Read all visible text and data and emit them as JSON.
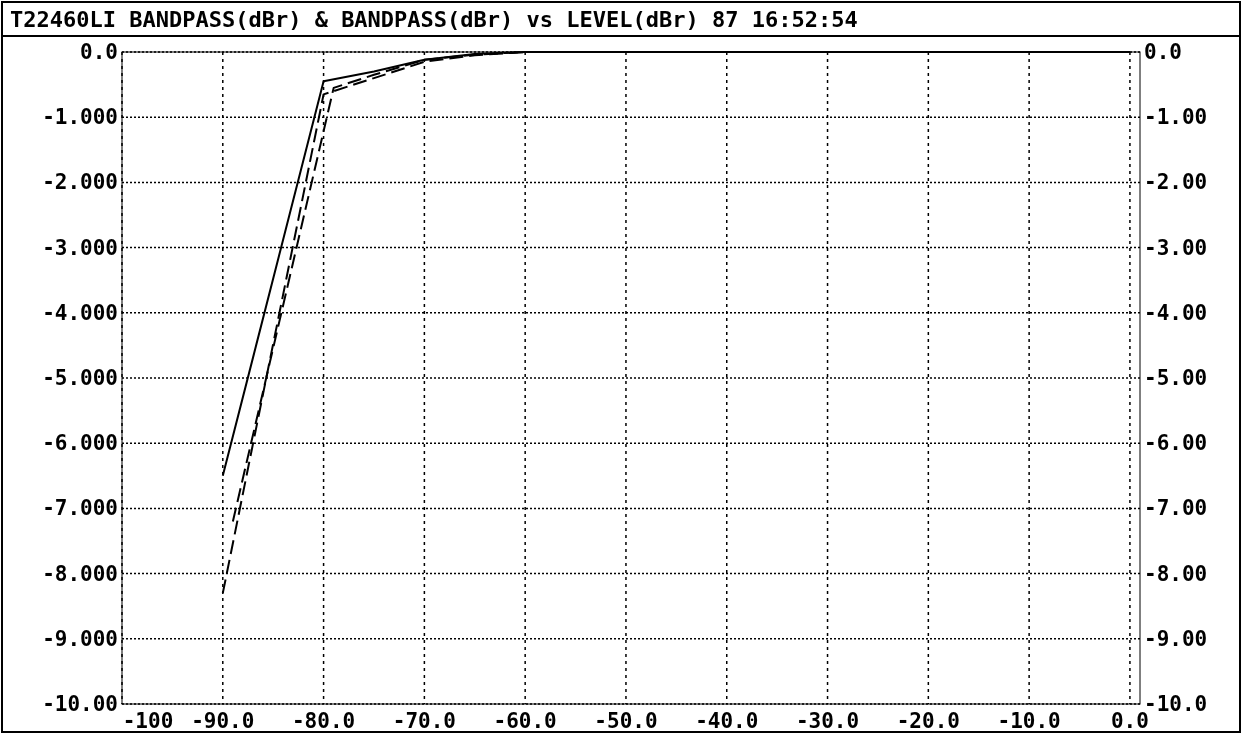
{
  "chart_data": {
    "type": "line",
    "title": "T22460LI BANDPASS(dBr) & BANDPASS(dBr) vs LEVEL(dBr) 87 16:52:54",
    "xlim": [
      -100,
      1
    ],
    "ylim": [
      -10,
      0
    ],
    "y2lim": [
      -10,
      0
    ],
    "xticks": [
      {
        "value": -100,
        "label": "-100"
      },
      {
        "value": -90,
        "label": "-90.0"
      },
      {
        "value": -80,
        "label": "-80.0"
      },
      {
        "value": -70,
        "label": "-70.0"
      },
      {
        "value": -60,
        "label": "-60.0"
      },
      {
        "value": -50,
        "label": "-50.0"
      },
      {
        "value": -40,
        "label": "-40.0"
      },
      {
        "value": -30,
        "label": "-30.0"
      },
      {
        "value": -20,
        "label": "-20.0"
      },
      {
        "value": -10,
        "label": "-10.0"
      },
      {
        "value": 0,
        "label": "0.0"
      }
    ],
    "yticks": [
      {
        "value": 0,
        "label": "0.0"
      },
      {
        "value": -1,
        "label": "-1.000"
      },
      {
        "value": -2,
        "label": "-2.000"
      },
      {
        "value": -3,
        "label": "-3.000"
      },
      {
        "value": -4,
        "label": "-4.000"
      },
      {
        "value": -5,
        "label": "-5.000"
      },
      {
        "value": -6,
        "label": "-6.000"
      },
      {
        "value": -7,
        "label": "-7.000"
      },
      {
        "value": -8,
        "label": "-8.000"
      },
      {
        "value": -9,
        "label": "-9.000"
      },
      {
        "value": -10,
        "label": "-10.00"
      }
    ],
    "y2ticks": [
      {
        "value": 0,
        "label": "0.0"
      },
      {
        "value": -1,
        "label": "-1.00"
      },
      {
        "value": -2,
        "label": "-2.00"
      },
      {
        "value": -3,
        "label": "-3.00"
      },
      {
        "value": -4,
        "label": "-4.00"
      },
      {
        "value": -5,
        "label": "-5.00"
      },
      {
        "value": -6,
        "label": "-6.00"
      },
      {
        "value": -7,
        "label": "-7.00"
      },
      {
        "value": -8,
        "label": "-8.00"
      },
      {
        "value": -9,
        "label": "-9.00"
      },
      {
        "value": -10,
        "label": "-10.0"
      }
    ],
    "grid": true,
    "series": [
      {
        "color": "#000000",
        "line_style": "solid",
        "x": [
          -90,
          -80,
          -75,
          -70,
          -65,
          -60,
          -40,
          0
        ],
        "values": [
          -6.5,
          -0.45,
          -0.3,
          -0.12,
          -0.03,
          0,
          0,
          0
        ]
      },
      {
        "color": "#000000",
        "line_style": "dashed",
        "x": [
          -90,
          -80,
          -75,
          -70,
          -65,
          -60,
          0
        ],
        "values": [
          -8.3,
          -0.65,
          -0.4,
          -0.15,
          -0.05,
          0,
          0
        ]
      },
      {
        "color": "#000000",
        "line_style": "dashed",
        "x": [
          -89,
          -79,
          -75,
          -70,
          -65,
          -60,
          0
        ],
        "values": [
          -7.2,
          -0.55,
          -0.35,
          -0.12,
          -0.04,
          0,
          0
        ]
      }
    ]
  }
}
